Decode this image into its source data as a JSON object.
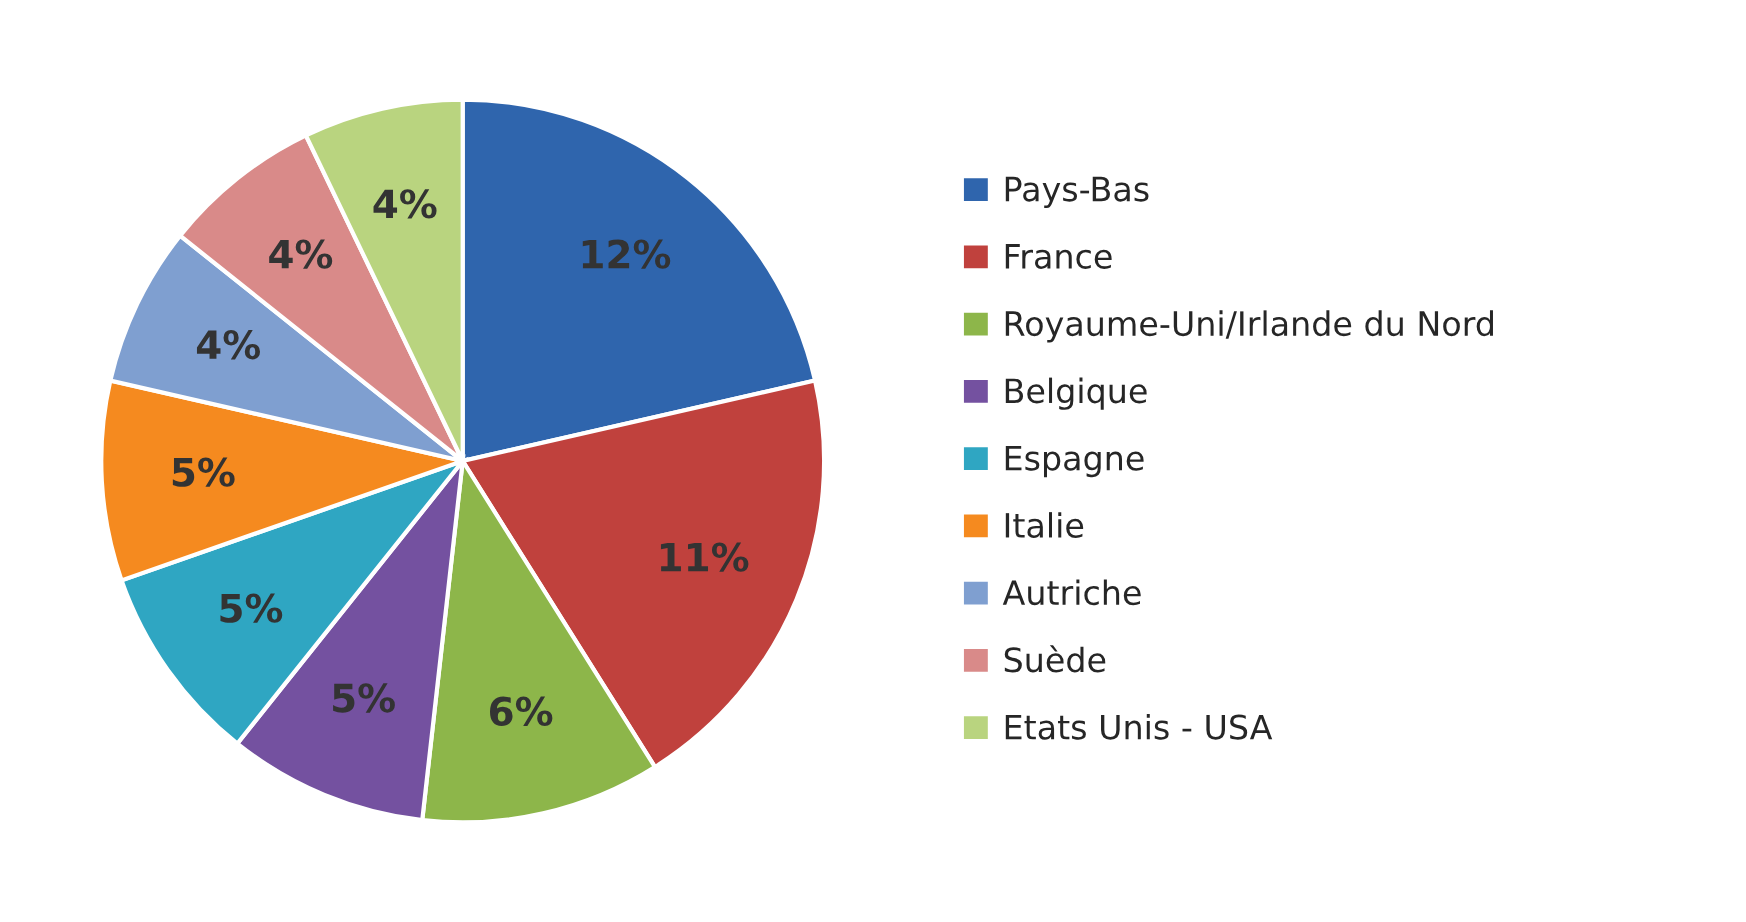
{
  "chart_data": {
    "type": "pie",
    "categories": [
      "Pays-Bas",
      "France",
      "Royaume-Uni/Irlande du Nord",
      "Belgique",
      "Espagne",
      "Italie",
      "Autriche",
      "Suède",
      "Etats Unis - USA"
    ],
    "values": [
      12,
      11,
      6,
      5,
      5,
      5,
      4,
      4,
      4
    ],
    "value_labels": [
      "12%",
      "11%",
      "6%",
      "5%",
      "5%",
      "5%",
      "4%",
      "4%",
      "4%"
    ],
    "colors": [
      "#2f65ad",
      "#c0413d",
      "#8db64a",
      "#7451a0",
      "#2fa6c2",
      "#f58a1f",
      "#7f9fd0",
      "#d98a89",
      "#b9d47f"
    ],
    "legend": "right"
  }
}
